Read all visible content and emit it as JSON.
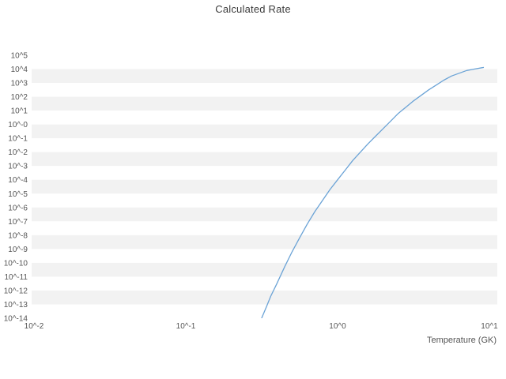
{
  "title": "Calculated Rate",
  "chart_data": {
    "type": "line",
    "title": "Calculated Rate",
    "xlabel": "Temperature (GK)",
    "ylabel": "",
    "x_scale": "log",
    "y_scale": "log",
    "x_range": [
      0.01,
      11.5
    ],
    "y_range_exponents": [
      -14,
      5
    ],
    "grid": "horizontal-alternating-bands",
    "legend": "none",
    "band_colors": [
      "#ffffff",
      "#f2f2f2"
    ],
    "tick_color": "#555555",
    "title_color": "#3b3b3b",
    "x_ticks": [
      {
        "label": "10^-2",
        "log10": -2
      },
      {
        "label": "10^-1",
        "log10": -1
      },
      {
        "label": "10^0",
        "log10": 0
      },
      {
        "label": "10^1",
        "log10": 1
      }
    ],
    "y_ticks": [
      {
        "label": "10^5",
        "exponent": 5
      },
      {
        "label": "10^4",
        "exponent": 4
      },
      {
        "label": "10^3",
        "exponent": 3
      },
      {
        "label": "10^2",
        "exponent": 2
      },
      {
        "label": "10^1",
        "exponent": 1
      },
      {
        "label": "10^-0",
        "exponent": 0
      },
      {
        "label": "10^-1",
        "exponent": -1
      },
      {
        "label": "10^-2",
        "exponent": -2
      },
      {
        "label": "10^-3",
        "exponent": -3
      },
      {
        "label": "10^-4",
        "exponent": -4
      },
      {
        "label": "10^-5",
        "exponent": -5
      },
      {
        "label": "10^-6",
        "exponent": -6
      },
      {
        "label": "10^-7",
        "exponent": -7
      },
      {
        "label": "10^-8",
        "exponent": -8
      },
      {
        "label": "10^-9",
        "exponent": -9
      },
      {
        "label": "10^-10",
        "exponent": -10
      },
      {
        "label": "10^-11",
        "exponent": -11
      },
      {
        "label": "10^-12",
        "exponent": -12
      },
      {
        "label": "10^-13",
        "exponent": -13
      },
      {
        "label": "10^-14",
        "exponent": -14
      }
    ],
    "series": [
      {
        "name": "calculated-rate",
        "color": "#6ba3d6",
        "points_format": "[temperature_GK, log10_rate]",
        "points": [
          [
            0.316,
            -14.0
          ],
          [
            0.339,
            -13.2
          ],
          [
            0.363,
            -12.4
          ],
          [
            0.398,
            -11.5
          ],
          [
            0.447,
            -10.3
          ],
          [
            0.501,
            -9.2
          ],
          [
            0.562,
            -8.2
          ],
          [
            0.631,
            -7.2
          ],
          [
            0.708,
            -6.3
          ],
          [
            0.794,
            -5.5
          ],
          [
            0.891,
            -4.7
          ],
          [
            1.0,
            -4.0
          ],
          [
            1.122,
            -3.3
          ],
          [
            1.259,
            -2.6
          ],
          [
            1.413,
            -2.0
          ],
          [
            1.585,
            -1.4
          ],
          [
            1.778,
            -0.85
          ],
          [
            1.995,
            -0.3
          ],
          [
            2.239,
            0.25
          ],
          [
            2.512,
            0.8
          ],
          [
            2.818,
            1.25
          ],
          [
            3.162,
            1.7
          ],
          [
            3.548,
            2.1
          ],
          [
            3.981,
            2.5
          ],
          [
            4.467,
            2.85
          ],
          [
            5.012,
            3.2
          ],
          [
            5.623,
            3.5
          ],
          [
            6.31,
            3.7
          ],
          [
            7.079,
            3.9
          ],
          [
            7.943,
            4.0
          ],
          [
            8.913,
            4.1
          ],
          [
            9.2,
            4.12
          ]
        ]
      }
    ]
  }
}
